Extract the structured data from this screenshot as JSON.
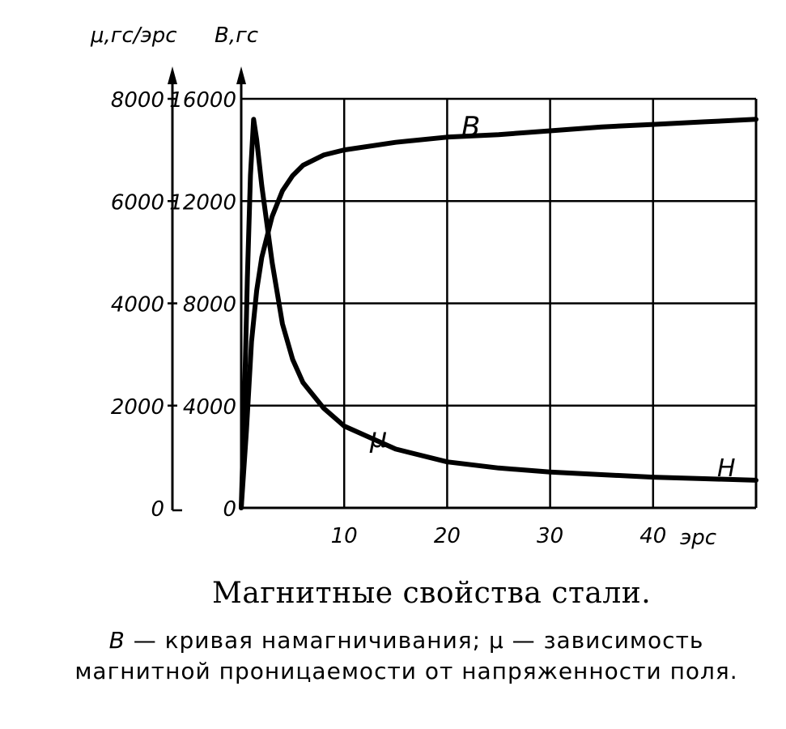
{
  "chart_data": {
    "type": "line",
    "xlabel": "H",
    "x_unit": "эрс",
    "xlim": [
      0,
      50
    ],
    "x_ticks": [
      "10",
      "20",
      "30",
      "40"
    ],
    "left_axis": {
      "label": "μ,гс/эрс",
      "ylim": [
        0,
        8000
      ],
      "ticks": [
        "0",
        "2000",
        "4000",
        "6000",
        "8000"
      ]
    },
    "right_axis": {
      "label": "B,гс",
      "ylim": [
        0,
        16000
      ],
      "ticks": [
        "0",
        "4000",
        "8000",
        "12000",
        "16000"
      ]
    },
    "grid": true,
    "series": [
      {
        "name": "B",
        "axis": "right",
        "x": [
          0,
          0.5,
          1,
          1.5,
          2,
          3,
          4,
          5,
          6,
          8,
          10,
          15,
          20,
          25,
          30,
          35,
          40,
          45,
          50
        ],
        "y": [
          0,
          3000,
          6500,
          8500,
          9800,
          11400,
          12400,
          13000,
          13400,
          13800,
          14000,
          14300,
          14500,
          14600,
          14750,
          14900,
          15000,
          15100,
          15200
        ]
      },
      {
        "name": "μ",
        "axis": "left",
        "x": [
          0,
          0.3,
          0.6,
          0.9,
          1.2,
          1.5,
          2,
          3,
          4,
          5,
          6,
          8,
          10,
          15,
          20,
          25,
          30,
          35,
          40,
          45,
          50
        ],
        "y": [
          0,
          2000,
          4500,
          6500,
          7600,
          7200,
          6300,
          4800,
          3600,
          2900,
          2450,
          1950,
          1600,
          1150,
          900,
          780,
          700,
          650,
          600,
          570,
          540
        ]
      }
    ]
  },
  "labels": {
    "left_axis_title": "μ,гс/эрс",
    "right_axis_title": "B,гс",
    "curve_b": "B",
    "curve_mu": "μ",
    "h_label": "H",
    "x_unit": "эрс"
  },
  "caption": {
    "title": "Магнитные свойства стали.",
    "b_symbol": "B",
    "b_text": " — кривая намагничивания; ",
    "mu_symbol": "μ",
    "mu_text": " — зависимость магнитной проницаемости от напряженности поля."
  }
}
